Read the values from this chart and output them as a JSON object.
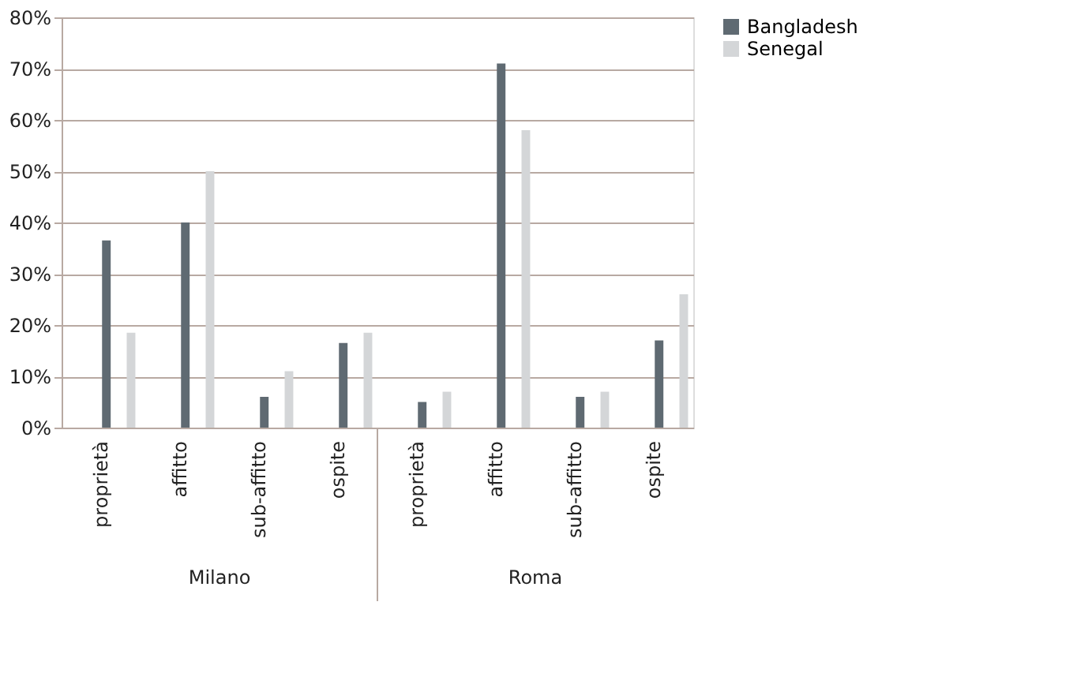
{
  "chart_data": {
    "type": "bar",
    "categories": [
      "proprietà",
      "affitto",
      "sub-affitto",
      "ospite",
      "proprietà",
      "affitto",
      "sub-affitto",
      "ospite"
    ],
    "series": [
      {
        "name": "Bangladesh",
        "color": "#5f6a72",
        "values": [
          36.5,
          40,
          6,
          16.5,
          5,
          71,
          6,
          17
        ]
      },
      {
        "name": "Senegal",
        "color": "#d4d6d8",
        "values": [
          18.5,
          50,
          11,
          18.5,
          7,
          58,
          7,
          26
        ]
      }
    ],
    "annotations": [
      "Milano",
      "Roma"
    ],
    "ylim": [
      0,
      80
    ],
    "yticks": [
      {
        "value": 0,
        "label": "0%"
      },
      {
        "value": 10,
        "label": "10%"
      },
      {
        "value": 20,
        "label": "20%"
      },
      {
        "value": 30,
        "label": "30%"
      },
      {
        "value": 40,
        "label": "40%"
      },
      {
        "value": 50,
        "label": "50%"
      },
      {
        "value": 60,
        "label": "60%"
      },
      {
        "value": 70,
        "label": "70%"
      },
      {
        "value": 80,
        "label": "80%"
      }
    ],
    "grid": "y",
    "legend": "right"
  }
}
